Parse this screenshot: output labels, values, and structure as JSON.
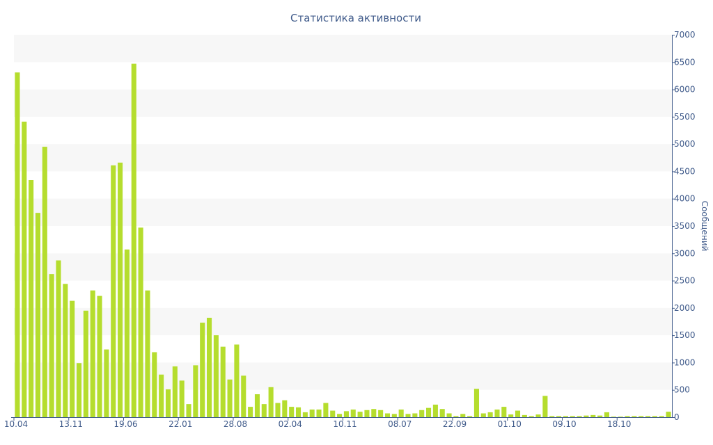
{
  "chart_data": {
    "type": "bar",
    "title": "Статистика активности",
    "ylabel": "Сообщений",
    "xlabel": "",
    "ylim": [
      0,
      7000
    ],
    "y_ticks": [
      0,
      500,
      1000,
      1500,
      2000,
      2500,
      3000,
      3500,
      4000,
      4500,
      5000,
      5500,
      6000,
      6500,
      7000
    ],
    "y_axis_side": "right",
    "grid": "alternating horizontal bands",
    "x_tick_labels": [
      {
        "label": "10.04",
        "index": 0
      },
      {
        "label": "13.11",
        "index": 8
      },
      {
        "label": "19.06",
        "index": 16
      },
      {
        "label": "22.01",
        "index": 24
      },
      {
        "label": "28.08",
        "index": 32
      },
      {
        "label": "02.04",
        "index": 40
      },
      {
        "label": "10.11",
        "index": 48
      },
      {
        "label": "08.07",
        "index": 56
      },
      {
        "label": "22.09",
        "index": 64
      },
      {
        "label": "01.10",
        "index": 72
      },
      {
        "label": "09.10",
        "index": 80
      },
      {
        "label": "18.10",
        "index": 88
      }
    ],
    "bar_color": "#b5dd2e",
    "band_color": "#f7f7f7",
    "text_color": "#3f5a8a",
    "values": [
      6310,
      5410,
      4340,
      3740,
      4950,
      2620,
      2870,
      2440,
      2130,
      990,
      1950,
      2320,
      2220,
      1240,
      4610,
      4660,
      3070,
      6470,
      3470,
      2320,
      1190,
      780,
      510,
      930,
      670,
      240,
      950,
      1730,
      1820,
      1500,
      1290,
      690,
      1330,
      760,
      190,
      420,
      240,
      550,
      260,
      310,
      190,
      180,
      90,
      140,
      140,
      260,
      120,
      60,
      110,
      140,
      100,
      130,
      150,
      130,
      70,
      60,
      140,
      60,
      70,
      130,
      170,
      230,
      150,
      70,
      20,
      60,
      20,
      520,
      70,
      90,
      140,
      190,
      50,
      120,
      40,
      20,
      50,
      390,
      20,
      20,
      20,
      20,
      20,
      30,
      40,
      30,
      90,
      10,
      10,
      20,
      20,
      20,
      20,
      20,
      20,
      100
    ]
  }
}
